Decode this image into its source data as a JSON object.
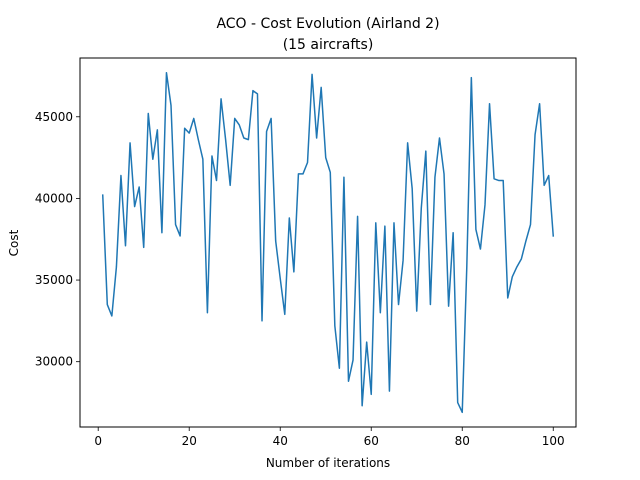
{
  "chart_data": {
    "type": "line",
    "title": "ACO - Cost Evolution (Airland 2)",
    "subtitle": "(15 aircrafts)",
    "xlabel": "Number of iterations",
    "ylabel": "Cost",
    "xlim": [
      -4,
      105
    ],
    "ylim": [
      26000,
      48600
    ],
    "x_ticks": [
      0,
      20,
      40,
      60,
      80,
      100
    ],
    "y_ticks": [
      30000,
      35000,
      40000,
      45000
    ],
    "grid": false,
    "series": [
      {
        "color": "#1f77b4",
        "x": [
          1,
          2,
          3,
          4,
          5,
          6,
          7,
          8,
          9,
          10,
          11,
          12,
          13,
          14,
          15,
          16,
          17,
          18,
          19,
          20,
          21,
          22,
          23,
          24,
          25,
          26,
          27,
          28,
          29,
          30,
          31,
          32,
          33,
          34,
          35,
          36,
          37,
          38,
          39,
          40,
          41,
          42,
          43,
          44,
          45,
          46,
          47,
          48,
          49,
          50,
          51,
          52,
          53,
          54,
          55,
          56,
          57,
          58,
          59,
          60,
          61,
          62,
          63,
          64,
          65,
          66,
          67,
          68,
          69,
          70,
          71,
          72,
          73,
          74,
          75,
          76,
          77,
          78,
          79,
          80,
          81,
          82,
          83,
          84,
          85,
          86,
          87,
          88,
          89,
          90,
          91,
          92,
          93,
          94,
          95,
          96,
          97,
          98,
          99,
          100
        ],
        "values": [
          40200,
          33500,
          32800,
          35800,
          41400,
          37100,
          43400,
          39500,
          40700,
          37000,
          45200,
          42400,
          44200,
          37900,
          47700,
          45700,
          38400,
          37700,
          44300,
          44000,
          44900,
          43600,
          42400,
          33000,
          42600,
          41100,
          46100,
          43600,
          40800,
          44900,
          44500,
          43700,
          43600,
          46600,
          46400,
          32500,
          44100,
          44900,
          37400,
          35100,
          32900,
          38800,
          35500,
          41500,
          41500,
          42200,
          47600,
          43700,
          46800,
          42500,
          41600,
          32200,
          29600,
          41300,
          28800,
          30100,
          38900,
          27300,
          31200,
          28000,
          38500,
          33000,
          38300,
          28200,
          38500,
          33500,
          36200,
          43400,
          40600,
          33100,
          39400,
          42900,
          33500,
          41300,
          43700,
          41500,
          33400,
          37900,
          27500,
          26900,
          35800,
          47400,
          38100,
          36900,
          39600,
          45800,
          41200,
          41100,
          41100,
          33900,
          35200,
          35800,
          36300,
          37400,
          38400,
          43900,
          45800,
          40800,
          41400,
          37700
        ]
      }
    ]
  }
}
